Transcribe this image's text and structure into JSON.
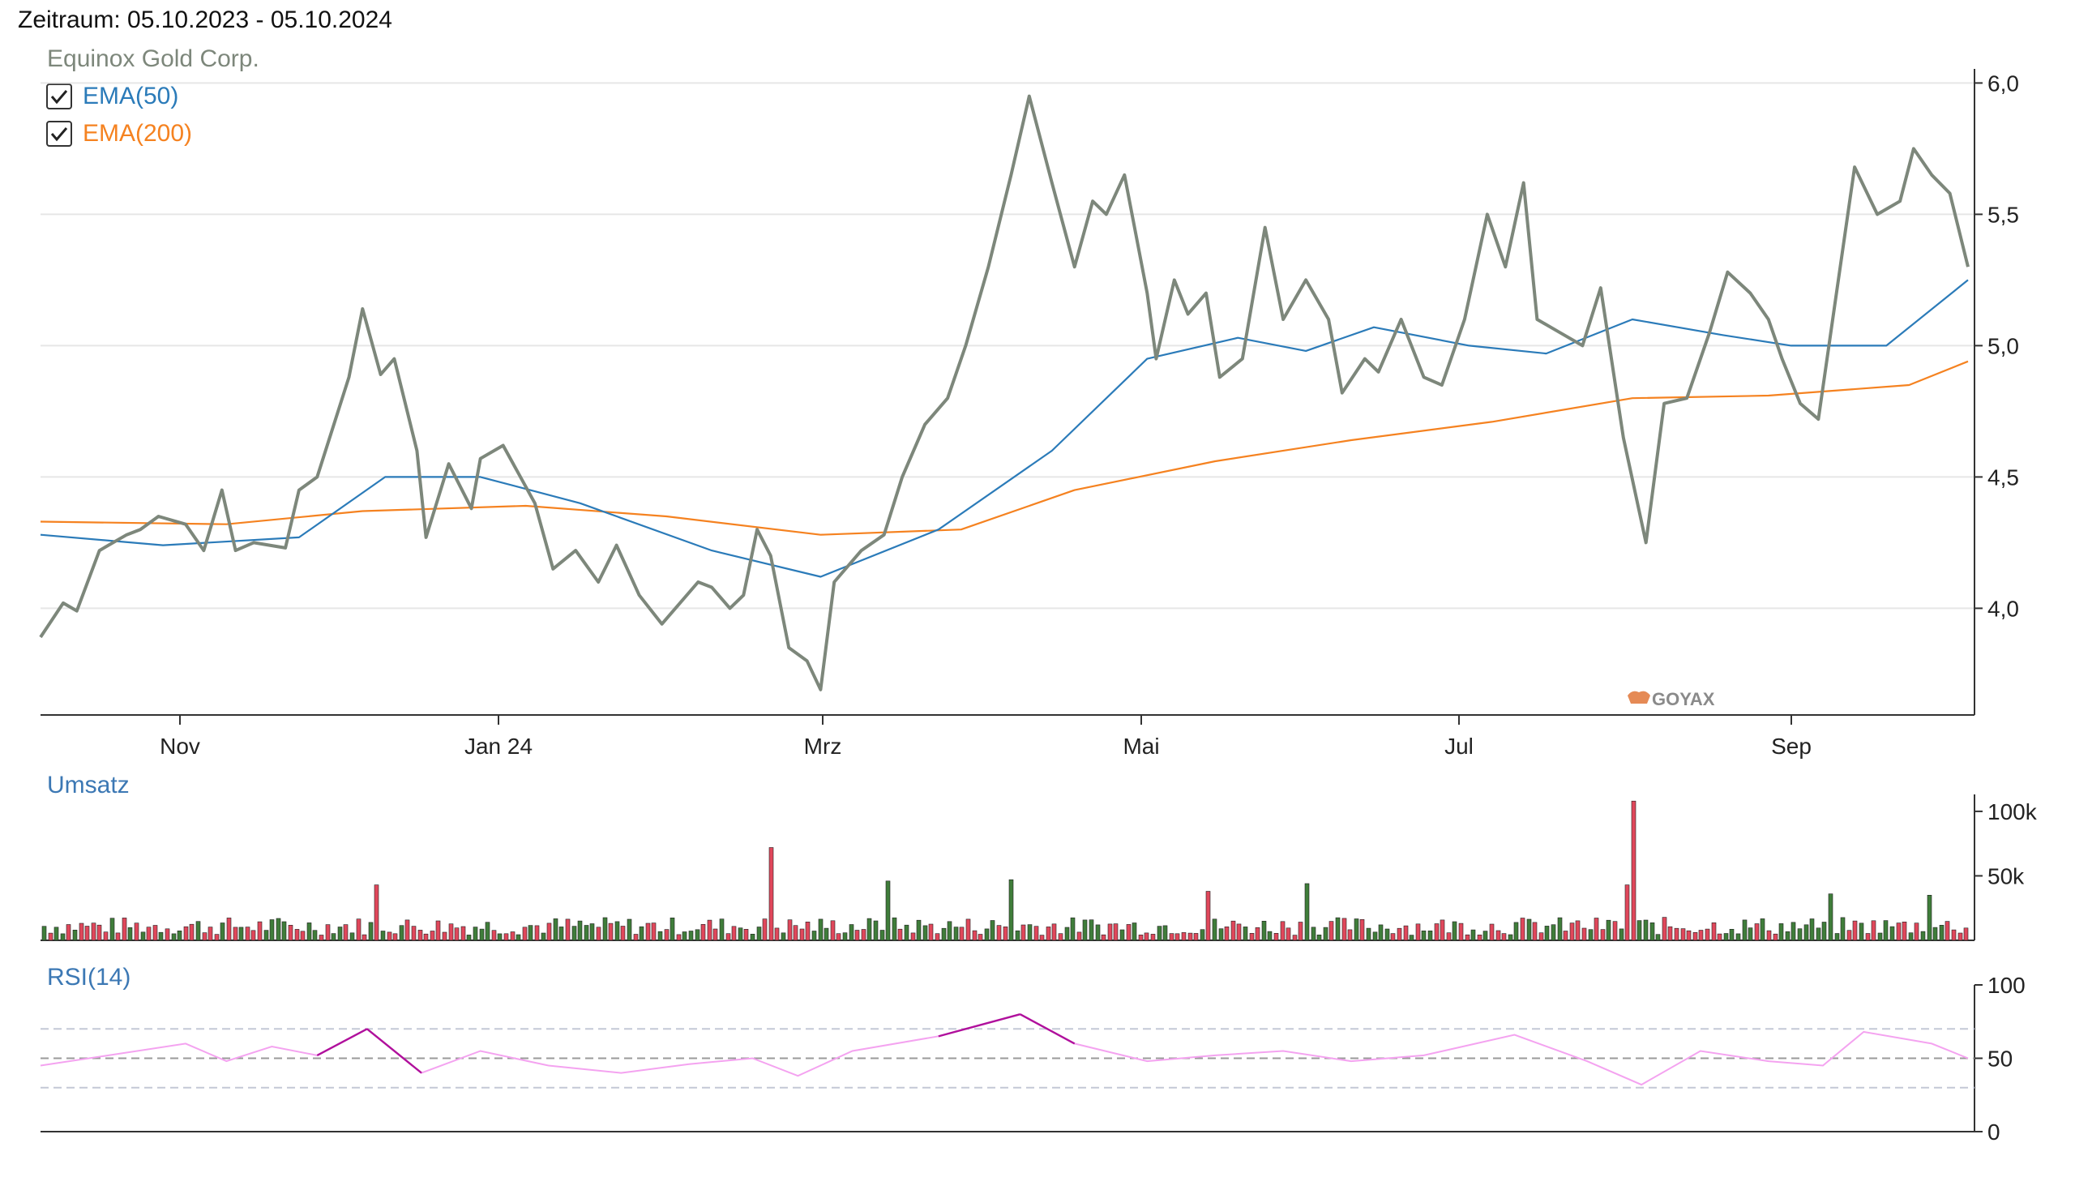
{
  "header": {
    "period": "Zeitraum: 05.10.2023 - 05.10.2024"
  },
  "legend": {
    "instrument": "Equinox Gold Corp.",
    "ema50": "EMA(50)",
    "ema200": "EMA(200)"
  },
  "watermark": "GOYAX",
  "colors": {
    "price": "#7d877b",
    "ema50": "#2b7bb9",
    "ema200": "#f58220",
    "volume_up": "#3f7d3a",
    "volume_down": "#e0475b",
    "rsi": "#f4a3f0",
    "rsi_extreme": "#b0109c",
    "label_blue": "#3c78b4",
    "grid": "#e6e6e6",
    "axis": "#333333"
  },
  "chart_data": [
    {
      "type": "line",
      "title": "Equinox Gold Corp.",
      "x_ticks": [
        "Nov",
        "Jan 24",
        "Mrz",
        "Mai",
        "Jul",
        "Sep"
      ],
      "y_ticks": [
        "4,0",
        "4,5",
        "5,0",
        "5,5",
        "6,0"
      ],
      "ylim": [
        3.6,
        6.1
      ],
      "grid": true,
      "legend_position": "top-left",
      "series": [
        {
          "name": "Equinox Gold Corp.",
          "points": [
            [
              "2023-10-05",
              3.89
            ],
            [
              "2023-10-10",
              4.02
            ],
            [
              "2023-10-13",
              3.99
            ],
            [
              "2023-10-18",
              4.22
            ],
            [
              "2023-10-24",
              4.28
            ],
            [
              "2023-10-27",
              4.3
            ],
            [
              "2023-10-31",
              4.35
            ],
            [
              "2023-11-06",
              4.32
            ],
            [
              "2023-11-10",
              4.22
            ],
            [
              "2023-11-14",
              4.45
            ],
            [
              "2023-11-17",
              4.22
            ],
            [
              "2023-11-21",
              4.25
            ],
            [
              "2023-11-28",
              4.23
            ],
            [
              "2023-12-01",
              4.45
            ],
            [
              "2023-12-05",
              4.5
            ],
            [
              "2023-12-12",
              4.88
            ],
            [
              "2023-12-15",
              5.14
            ],
            [
              "2023-12-19",
              4.89
            ],
            [
              "2023-12-22",
              4.95
            ],
            [
              "2023-12-27",
              4.6
            ],
            [
              "2023-12-29",
              4.27
            ],
            [
              "2024-01-03",
              4.55
            ],
            [
              "2024-01-08",
              4.38
            ],
            [
              "2024-01-10",
              4.57
            ],
            [
              "2024-01-15",
              4.62
            ],
            [
              "2024-01-22",
              4.4
            ],
            [
              "2024-01-26",
              4.15
            ],
            [
              "2024-01-31",
              4.22
            ],
            [
              "2024-02-05",
              4.1
            ],
            [
              "2024-02-09",
              4.24
            ],
            [
              "2024-02-14",
              4.05
            ],
            [
              "2024-02-19",
              3.94
            ],
            [
              "2024-02-22",
              4.0
            ],
            [
              "2024-02-27",
              4.1
            ],
            [
              "2024-03-01",
              4.08
            ],
            [
              "2024-03-05",
              4.0
            ],
            [
              "2024-03-08",
              4.05
            ],
            [
              "2024-03-11",
              4.3
            ],
            [
              "2024-03-14",
              4.2
            ],
            [
              "2024-03-18",
              3.85
            ],
            [
              "2024-03-22",
              3.8
            ],
            [
              "2024-03-25",
              3.69
            ],
            [
              "2024-03-28",
              4.1
            ],
            [
              "2024-04-03",
              4.22
            ],
            [
              "2024-04-08",
              4.28
            ],
            [
              "2024-04-12",
              4.5
            ],
            [
              "2024-04-17",
              4.7
            ],
            [
              "2024-04-22",
              4.8
            ],
            [
              "2024-04-26",
              5.0
            ],
            [
              "2024-05-01",
              5.3
            ],
            [
              "2024-05-06",
              5.65
            ],
            [
              "2024-05-10",
              5.95
            ],
            [
              "2024-05-15",
              5.62
            ],
            [
              "2024-05-20",
              5.3
            ],
            [
              "2024-05-24",
              5.55
            ],
            [
              "2024-05-27",
              5.5
            ],
            [
              "2024-05-31",
              5.65
            ],
            [
              "2024-06-05",
              5.2
            ],
            [
              "2024-06-07",
              4.95
            ],
            [
              "2024-06-11",
              5.25
            ],
            [
              "2024-06-14",
              5.12
            ],
            [
              "2024-06-18",
              5.2
            ],
            [
              "2024-06-21",
              4.88
            ],
            [
              "2024-06-26",
              4.95
            ],
            [
              "2024-07-01",
              5.45
            ],
            [
              "2024-07-05",
              5.1
            ],
            [
              "2024-07-10",
              5.25
            ],
            [
              "2024-07-15",
              5.1
            ],
            [
              "2024-07-18",
              4.82
            ],
            [
              "2024-07-23",
              4.95
            ],
            [
              "2024-07-26",
              4.9
            ],
            [
              "2024-07-31",
              5.1
            ],
            [
              "2024-08-05",
              4.88
            ],
            [
              "2024-08-09",
              4.85
            ],
            [
              "2024-08-14",
              5.1
            ],
            [
              "2024-08-19",
              5.5
            ],
            [
              "2024-08-23",
              5.3
            ],
            [
              "2024-08-27",
              5.62
            ],
            [
              "2024-08-30",
              5.1
            ],
            [
              "2024-09-04",
              5.05
            ],
            [
              "2024-09-09",
              5.0
            ],
            [
              "2024-09-13",
              5.22
            ],
            [
              "2024-09-18",
              4.65
            ],
            [
              "2024-09-23",
              4.25
            ],
            [
              "2024-09-27",
              4.78
            ],
            [
              "2024-10-02",
              4.8
            ],
            [
              "2024-10-07",
              5.05
            ],
            [
              "2024-10-11",
              5.28
            ],
            [
              "2024-10-16",
              5.2
            ],
            [
              "2024-10-20",
              5.1
            ],
            [
              "2024-10-23",
              4.95
            ],
            [
              "2024-10-27",
              4.78
            ],
            [
              "2024-10-31",
              4.72
            ],
            [
              "2024-11-04",
              5.2
            ],
            [
              "2024-11-08",
              5.68
            ],
            [
              "2024-11-13",
              5.5
            ],
            [
              "2024-11-18",
              5.55
            ],
            [
              "2024-11-21",
              5.75
            ],
            [
              "2024-11-25",
              5.65
            ],
            [
              "2024-11-29",
              5.58
            ],
            [
              "2024-12-03",
              5.3
            ]
          ]
        },
        {
          "name": "EMA(50)",
          "points": [
            [
              "2023-10-05",
              4.28
            ],
            [
              "2023-11-01",
              4.24
            ],
            [
              "2023-12-01",
              4.27
            ],
            [
              "2023-12-20",
              4.5
            ],
            [
              "2024-01-10",
              4.5
            ],
            [
              "2024-02-01",
              4.4
            ],
            [
              "2024-03-01",
              4.22
            ],
            [
              "2024-03-25",
              4.12
            ],
            [
              "2024-04-20",
              4.3
            ],
            [
              "2024-05-15",
              4.6
            ],
            [
              "2024-06-05",
              4.95
            ],
            [
              "2024-06-25",
              5.03
            ],
            [
              "2024-07-10",
              4.98
            ],
            [
              "2024-07-25",
              5.07
            ],
            [
              "2024-08-15",
              5.0
            ],
            [
              "2024-09-01",
              4.97
            ],
            [
              "2024-09-20",
              5.1
            ],
            [
              "2024-10-10",
              5.04
            ],
            [
              "2024-10-25",
              5.0
            ],
            [
              "2024-11-15",
              5.0
            ],
            [
              "2024-12-03",
              5.25
            ]
          ]
        },
        {
          "name": "EMA(200)",
          "points": [
            [
              "2023-10-05",
              4.33
            ],
            [
              "2023-11-15",
              4.32
            ],
            [
              "2023-12-15",
              4.37
            ],
            [
              "2024-01-20",
              4.39
            ],
            [
              "2024-02-20",
              4.35
            ],
            [
              "2024-03-25",
              4.28
            ],
            [
              "2024-04-25",
              4.3
            ],
            [
              "2024-05-20",
              4.45
            ],
            [
              "2024-06-20",
              4.56
            ],
            [
              "2024-07-20",
              4.64
            ],
            [
              "2024-08-20",
              4.71
            ],
            [
              "2024-09-20",
              4.8
            ],
            [
              "2024-10-20",
              4.81
            ],
            [
              "2024-11-20",
              4.85
            ],
            [
              "2024-12-03",
              4.94
            ]
          ]
        }
      ]
    },
    {
      "type": "bar",
      "title": "Umsatz",
      "y_ticks": [
        "50k",
        "100k"
      ],
      "ylim": [
        0,
        110000
      ],
      "peaks": [
        {
          "date": "2023-12-18",
          "value": 43000,
          "color": "down"
        },
        {
          "date": "2024-03-14",
          "value": 72000,
          "color": "down"
        },
        {
          "date": "2024-04-08",
          "value": 46000,
          "color": "up"
        },
        {
          "date": "2024-05-06",
          "value": 47000,
          "color": "up"
        },
        {
          "date": "2024-06-18",
          "value": 38000,
          "color": "down"
        },
        {
          "date": "2024-07-10",
          "value": 44000,
          "color": "up"
        },
        {
          "date": "2024-09-20",
          "value": 108000,
          "color": "down"
        },
        {
          "date": "2024-09-18",
          "value": 43000,
          "color": "down"
        },
        {
          "date": "2024-11-02",
          "value": 36000,
          "color": "up"
        },
        {
          "date": "2024-11-24",
          "value": 35000,
          "color": "up"
        }
      ]
    },
    {
      "type": "line",
      "title": "RSI(14)",
      "y_ticks": [
        "0",
        "50",
        "100"
      ],
      "ylim": [
        0,
        100
      ],
      "reference_lines": [
        30,
        50,
        70
      ],
      "series": [
        {
          "name": "RSI(14)",
          "points": [
            [
              "2023-10-05",
              45
            ],
            [
              "2023-10-20",
              52
            ],
            [
              "2023-11-06",
              60
            ],
            [
              "2023-11-15",
              48
            ],
            [
              "2023-11-25",
              58
            ],
            [
              "2023-12-05",
              52
            ],
            [
              "2023-12-16",
              70
            ],
            [
              "2023-12-28",
              40
            ],
            [
              "2024-01-10",
              55
            ],
            [
              "2024-01-25",
              45
            ],
            [
              "2024-02-10",
              40
            ],
            [
              "2024-02-25",
              46
            ],
            [
              "2024-03-10",
              50
            ],
            [
              "2024-03-20",
              38
            ],
            [
              "2024-04-01",
              55
            ],
            [
              "2024-04-20",
              65
            ],
            [
              "2024-05-08",
              80
            ],
            [
              "2024-05-20",
              60
            ],
            [
              "2024-06-05",
              48
            ],
            [
              "2024-06-20",
              52
            ],
            [
              "2024-07-05",
              55
            ],
            [
              "2024-07-20",
              48
            ],
            [
              "2024-08-05",
              52
            ],
            [
              "2024-08-25",
              66
            ],
            [
              "2024-09-10",
              48
            ],
            [
              "2024-09-22",
              32
            ],
            [
              "2024-10-05",
              55
            ],
            [
              "2024-10-20",
              48
            ],
            [
              "2024-11-01",
              45
            ],
            [
              "2024-11-10",
              68
            ],
            [
              "2024-11-25",
              60
            ],
            [
              "2024-12-03",
              50
            ]
          ]
        }
      ]
    }
  ]
}
